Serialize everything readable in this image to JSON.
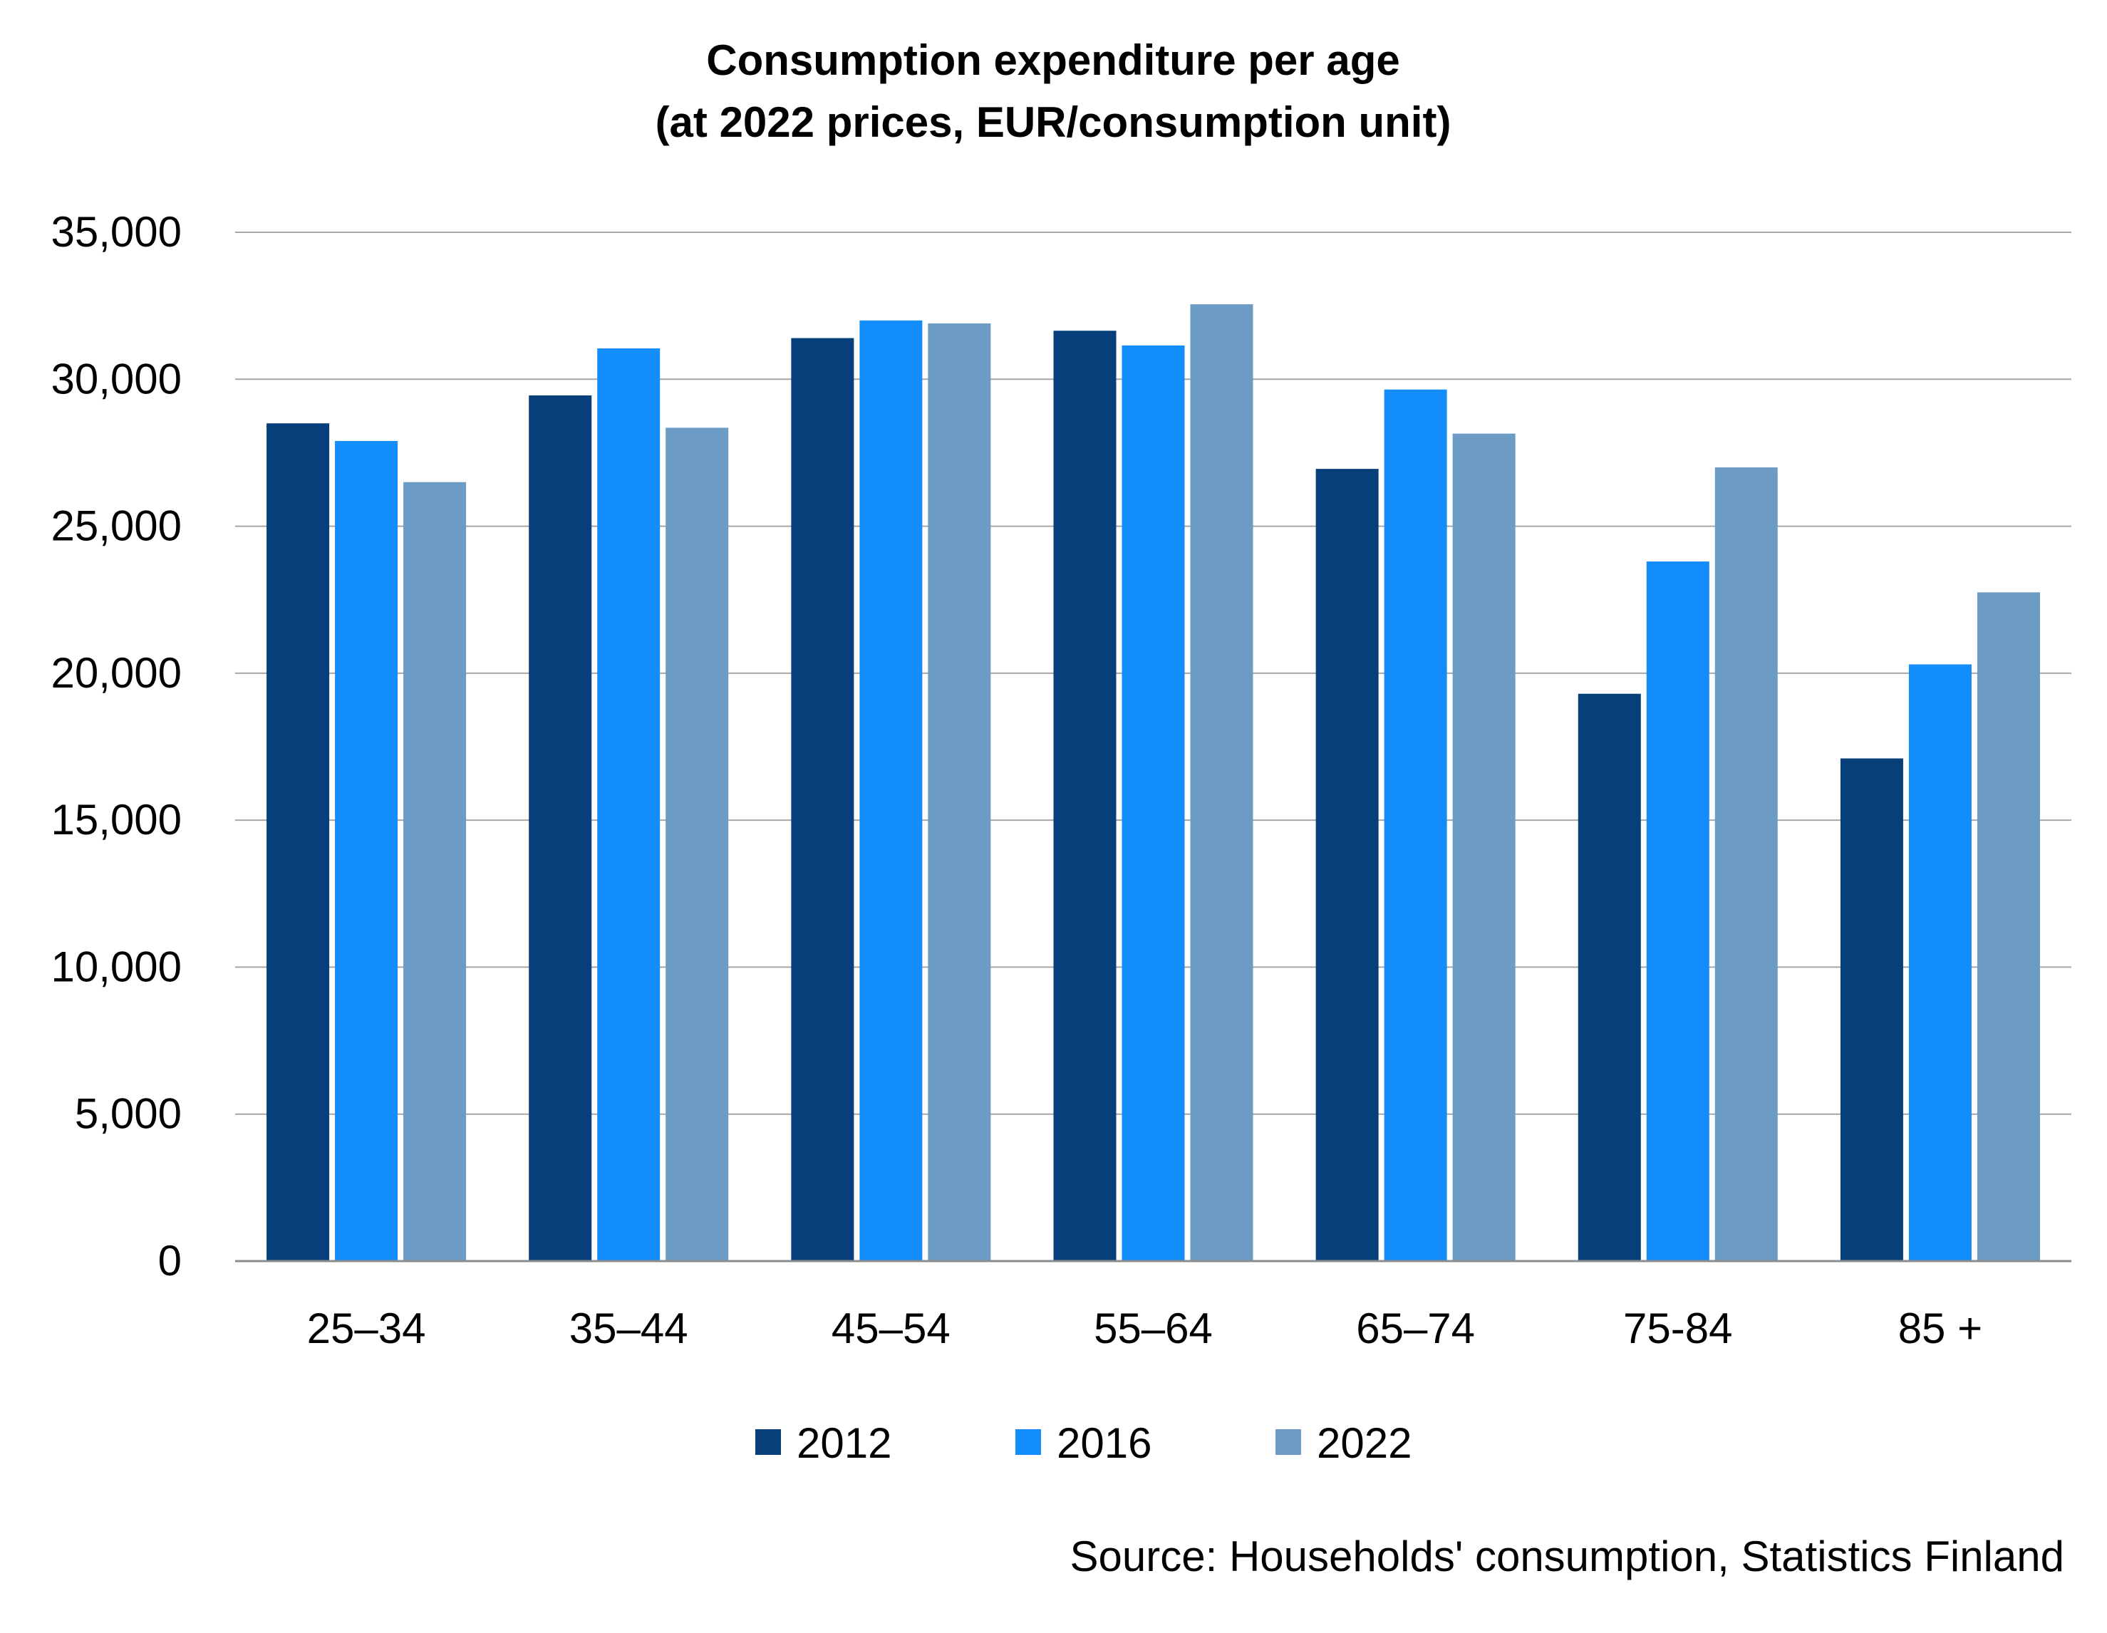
{
  "chart_data": {
    "type": "bar",
    "title": "Consumption expenditure per age",
    "subtitle": "(at 2022 prices, EUR/consumption unit)",
    "categories": [
      "25–34",
      "35–44",
      "45–54",
      "55–64",
      "65–74",
      "75-84",
      "85 +"
    ],
    "series": [
      {
        "name": "2012",
        "color": "#063f7a",
        "values": [
          28500,
          29450,
          31400,
          31650,
          26950,
          19300,
          17100
        ]
      },
      {
        "name": "2016",
        "color": "#138dfb",
        "values": [
          27900,
          31050,
          32000,
          31150,
          29650,
          23800,
          20300
        ]
      },
      {
        "name": "2022",
        "color": "#6c9bc5",
        "values": [
          26500,
          28350,
          31900,
          32550,
          28150,
          27000,
          22750
        ]
      }
    ],
    "ylim": [
      0,
      35000
    ],
    "yticks": [
      0,
      5000,
      10000,
      15000,
      20000,
      25000,
      30000,
      35000
    ],
    "ytick_labels": [
      "0",
      "5,000",
      "10,000",
      "15,000",
      "20,000",
      "25,000",
      "30,000",
      "35,000"
    ],
    "xlabel": "",
    "ylabel": "",
    "grid": true,
    "legend_position": "bottom-center",
    "source": "Source: Households' consumption, Statistics Finland"
  }
}
